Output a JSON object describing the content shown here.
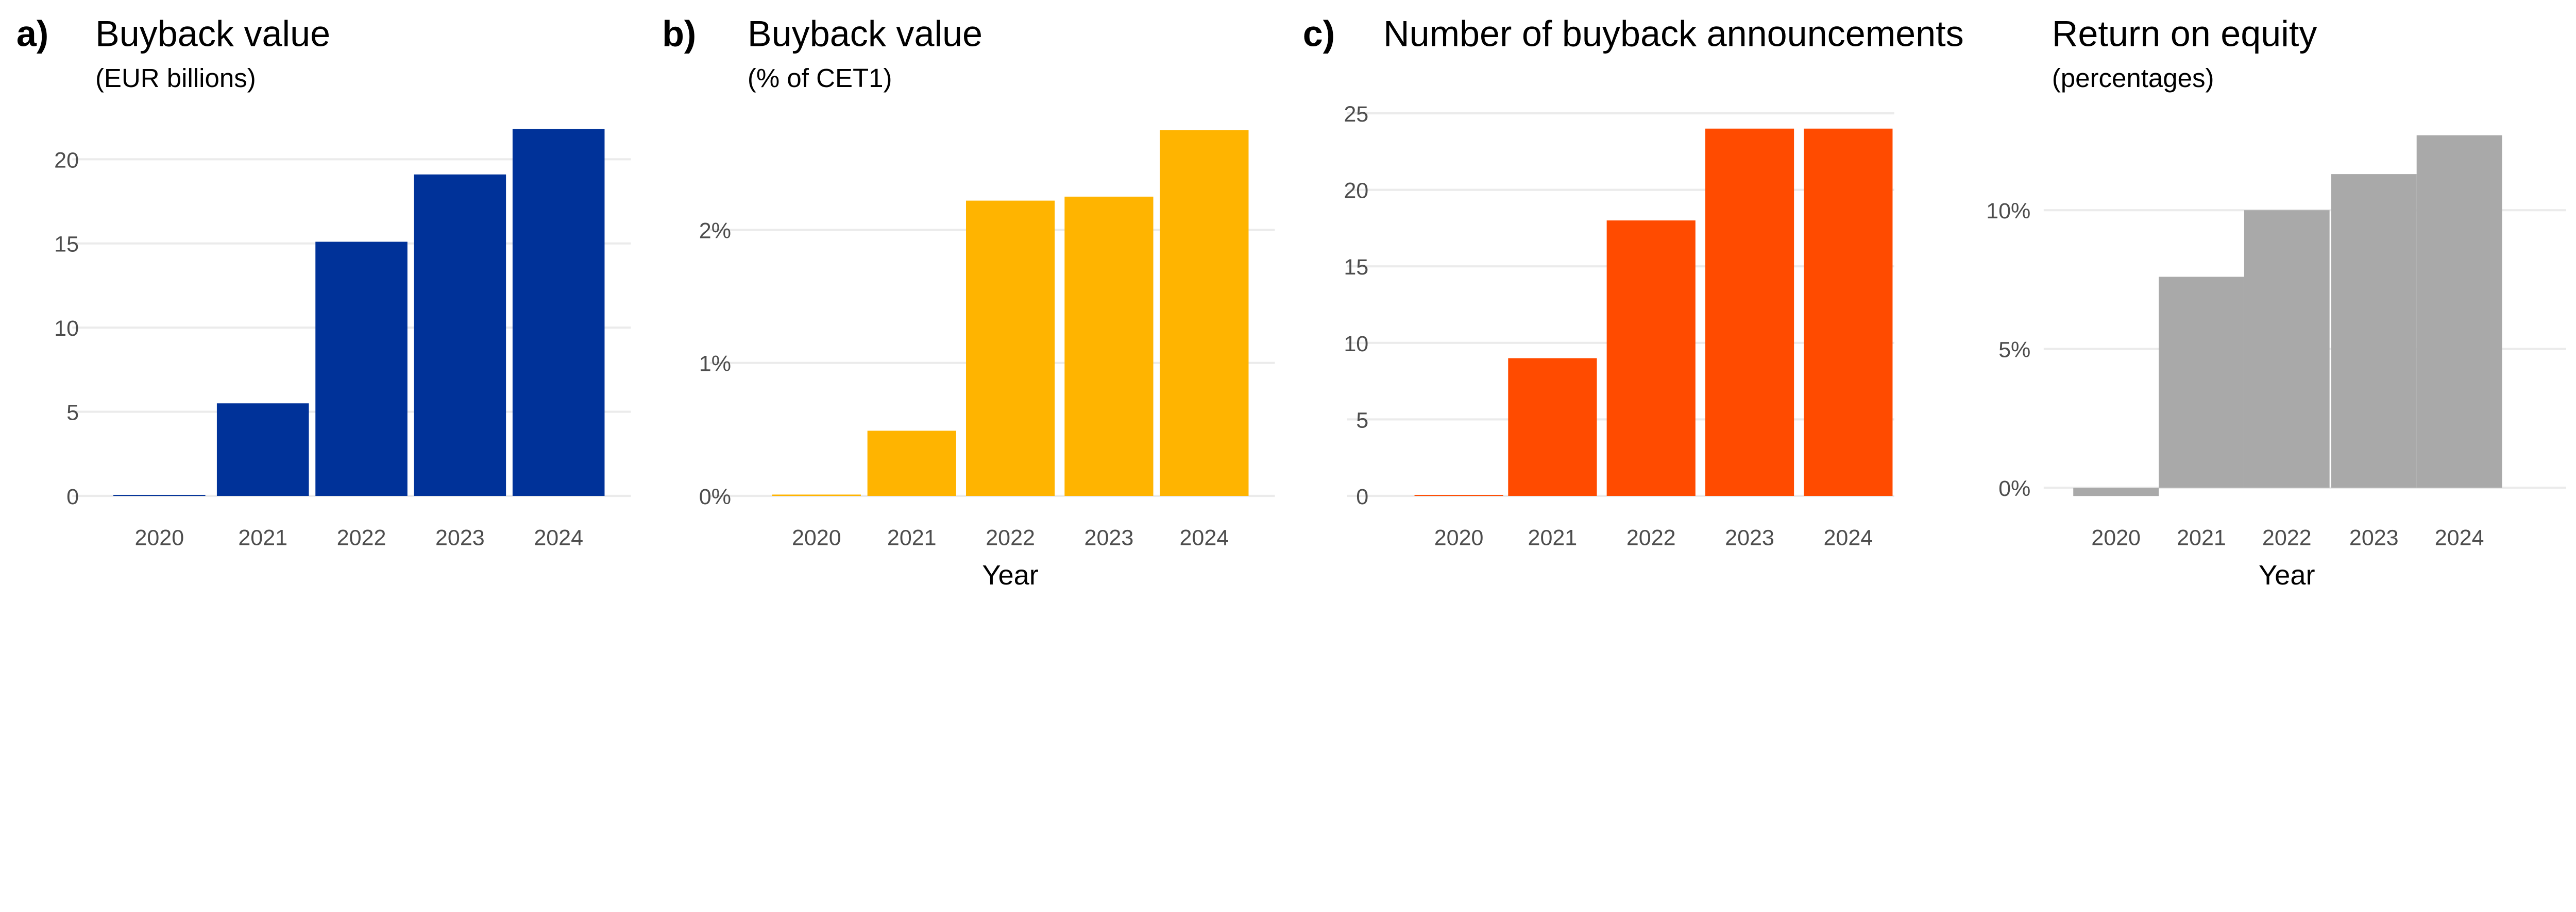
{
  "chart_data": [
    {
      "type": "bar",
      "panel_label": "a)",
      "title": "Buyback value",
      "subtitle": "(EUR billions)",
      "xlabel": "",
      "categories": [
        "2020",
        "2021",
        "2022",
        "2023",
        "2024"
      ],
      "values": [
        0.05,
        5.5,
        15.1,
        19.1,
        21.8
      ],
      "yticks": [
        0,
        5,
        10,
        15,
        20
      ],
      "ytick_labels": [
        "0",
        "5",
        "10",
        "15",
        "20"
      ],
      "ylim": [
        0,
        22
      ],
      "color": "#003299",
      "grid": true
    },
    {
      "type": "bar",
      "panel_label": "b)",
      "title": "Buyback value",
      "subtitle": "(% of CET1)",
      "xlabel": "Year",
      "categories": [
        "2020",
        "2021",
        "2022",
        "2023",
        "2024"
      ],
      "values": [
        0.01,
        0.49,
        2.22,
        2.25,
        2.75
      ],
      "yticks": [
        0,
        1,
        2
      ],
      "ytick_labels": [
        "0%",
        "1%",
        "2%"
      ],
      "ylim": [
        0,
        2.8
      ],
      "color": "#FFB400",
      "grid": true
    },
    {
      "type": "bar",
      "panel_label": "c)",
      "title": "Number of buyback announcements",
      "subtitle": "",
      "xlabel": "",
      "categories": [
        "2020",
        "2021",
        "2022",
        "2023",
        "2024"
      ],
      "values": [
        0,
        9,
        18,
        24,
        24
      ],
      "yticks": [
        0,
        5,
        10,
        15,
        20,
        25
      ],
      "ytick_labels": [
        "0",
        "5",
        "10",
        "15",
        "20",
        "25"
      ],
      "ylim": [
        0,
        25
      ],
      "color": "#FF4B00",
      "grid": true
    },
    {
      "type": "bar",
      "panel_label": "",
      "title": "Return on equity",
      "subtitle": "(percentages)",
      "xlabel": "Year",
      "categories": [
        "2020",
        "2021",
        "2022",
        "2023",
        "2024"
      ],
      "values": [
        -0.3,
        7.6,
        10.0,
        11.3,
        12.7
      ],
      "yticks": [
        0,
        5,
        10
      ],
      "ytick_labels": [
        "0%",
        "5%",
        "10%"
      ],
      "ylim": [
        -0.3,
        12.7
      ],
      "color": "#A9A9A9",
      "grid": true
    }
  ]
}
